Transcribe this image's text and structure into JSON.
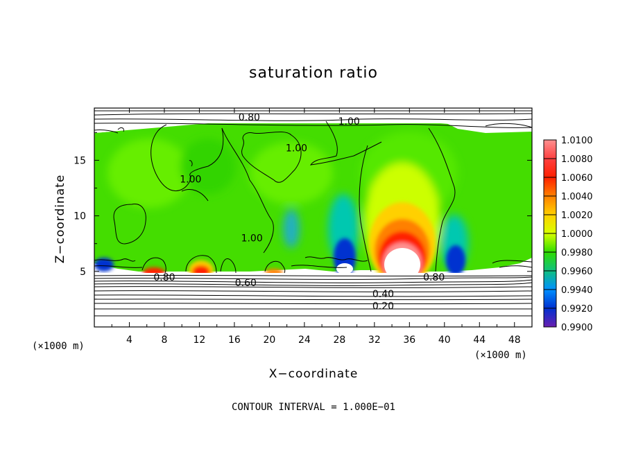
{
  "chart_data": {
    "type": "heatmap",
    "title": "saturation ratio",
    "xlabel": "X−coordinate",
    "ylabel": "Z−coordinate",
    "x_unit": "(×1000 m)",
    "y_unit": "(×1000 m)",
    "xlim": [
      0,
      50
    ],
    "ylim": [
      0,
      19.7
    ],
    "x_ticks": [
      4,
      8,
      12,
      16,
      20,
      24,
      28,
      32,
      36,
      40,
      44,
      48
    ],
    "y_ticks": [
      5,
      10,
      15
    ],
    "colorbar": {
      "levels": [
        "1.0100",
        "1.0080",
        "1.0060",
        "1.0040",
        "1.0020",
        "1.0000",
        "0.9980",
        "0.9960",
        "0.9940",
        "0.9920",
        "0.9900"
      ],
      "colors": [
        "#ff9090",
        "#ff4040",
        "#ff2000",
        "#ff8000",
        "#ffd000",
        "#d8ff00",
        "#30dd00",
        "#10c080",
        "#0090ff",
        "#0030d0",
        "#6a1fb0"
      ]
    },
    "contour_labels": [
      {
        "text": "0.80",
        "x": 17.7,
        "z": 18.9
      },
      {
        "text": "1.00",
        "x": 29.1,
        "z": 18.5
      },
      {
        "text": "1.00",
        "x": 23.1,
        "z": 16.1
      },
      {
        "text": "1.00",
        "x": 11.0,
        "z": 13.3
      },
      {
        "text": "1.00",
        "x": 18.0,
        "z": 8.0
      },
      {
        "text": "0.80",
        "x": 8.0,
        "z": 4.5
      },
      {
        "text": "0.60",
        "x": 17.3,
        "z": 4.0
      },
      {
        "text": "0.40",
        "x": 33.0,
        "z": 3.0
      },
      {
        "text": "0.20",
        "x": 33.0,
        "z": 1.9
      },
      {
        "text": "0.80",
        "x": 38.8,
        "z": 4.5
      }
    ],
    "features": [
      {
        "name": "saturation maximum",
        "x": 35.0,
        "z": 6.5,
        "value": 1.01
      },
      {
        "name": "saturation maximum",
        "x": 12.0,
        "z": 5.3,
        "value": 1.008
      },
      {
        "name": "saturation maximum",
        "x": 6.5,
        "z": 5.0,
        "value": 1.006
      },
      {
        "name": "saturation maximum",
        "x": 20.5,
        "z": 5.0,
        "value": 1.004
      },
      {
        "name": "saturation minimum",
        "x": 28.5,
        "z": 6.0,
        "value": 0.99
      },
      {
        "name": "saturation minimum",
        "x": 40.5,
        "z": 6.0,
        "value": 0.991
      },
      {
        "name": "saturation minimum",
        "x": 1.5,
        "z": 5.8,
        "value": 0.992
      }
    ]
  },
  "footer": "CONTOUR INTERVAL = 1.000E−01"
}
